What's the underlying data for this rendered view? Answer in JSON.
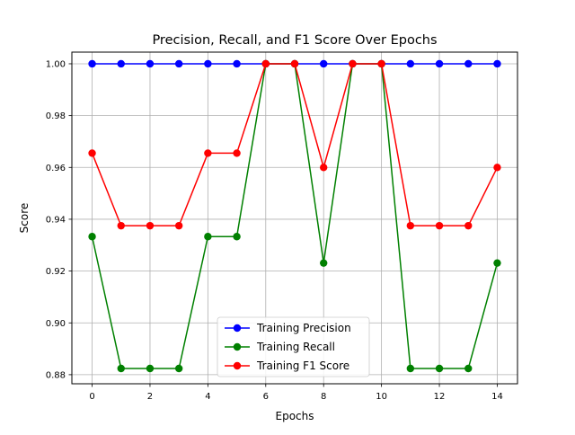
{
  "chart_data": {
    "type": "line",
    "title": "Precision, Recall, and F1 Score Over Epochs",
    "xlabel": "Epochs",
    "ylabel": "Score",
    "x": [
      0,
      1,
      2,
      3,
      4,
      5,
      6,
      7,
      8,
      9,
      10,
      11,
      12,
      13,
      14
    ],
    "xlim": [
      -0.7,
      14.7
    ],
    "ylim": [
      0.8765,
      1.0045
    ],
    "xticks": [
      0,
      2,
      4,
      6,
      8,
      10,
      12,
      14
    ],
    "yticks": [
      0.88,
      0.9,
      0.92,
      0.94,
      0.96,
      0.98,
      1.0
    ],
    "ytick_labels": [
      "0.88",
      "0.90",
      "0.92",
      "0.94",
      "0.96",
      "0.98",
      "1.00"
    ],
    "grid": true,
    "legend_position": "lower-center",
    "series": [
      {
        "name": "Training Precision",
        "color": "#0000ff",
        "marker": "circle",
        "values": [
          1.0,
          1.0,
          1.0,
          1.0,
          1.0,
          1.0,
          1.0,
          1.0,
          1.0,
          1.0,
          1.0,
          1.0,
          1.0,
          1.0,
          1.0
        ]
      },
      {
        "name": "Training Recall",
        "color": "#008000",
        "marker": "circle",
        "values": [
          0.9333,
          0.8824,
          0.8824,
          0.8824,
          0.9333,
          0.9333,
          1.0,
          1.0,
          0.9231,
          1.0,
          1.0,
          0.8824,
          0.8824,
          0.8824,
          0.9231
        ]
      },
      {
        "name": "Training F1 Score",
        "color": "#ff0000",
        "marker": "circle",
        "values": [
          0.9655,
          0.9375,
          0.9375,
          0.9375,
          0.9655,
          0.9655,
          1.0,
          1.0,
          0.96,
          1.0,
          1.0,
          0.9375,
          0.9375,
          0.9375,
          0.96
        ]
      }
    ]
  }
}
